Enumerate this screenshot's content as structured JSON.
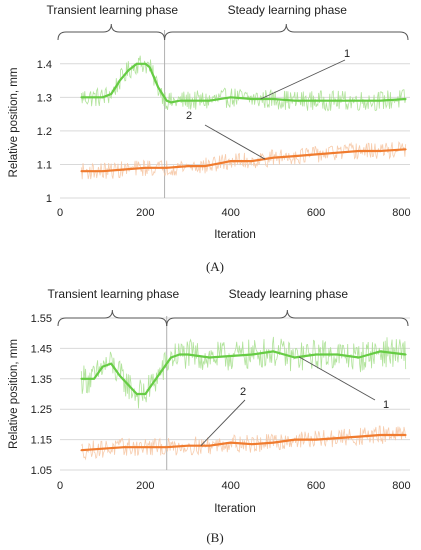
{
  "chart_data": [
    {
      "type": "line",
      "caption": "(A)",
      "phases": {
        "left": "Transient learning phase",
        "right": "Steady learning phase"
      },
      "phase_boundary_x": 245,
      "xlabel": "Iteration",
      "ylabel": "Relative position, mm",
      "xlim": [
        0,
        820
      ],
      "ylim": [
        1,
        1.45
      ],
      "xticks": [
        "0",
        "200",
        "400",
        "600",
        "800"
      ],
      "yticks": [
        "1",
        "1.1",
        "1.2",
        "1.3",
        "1.4"
      ],
      "grid": true,
      "series": [
        {
          "name": "1",
          "color": "#66cc44",
          "raw_color": "#a8e090",
          "raw_noise": 0.03,
          "x": [
            50,
            80,
            100,
            120,
            140,
            160,
            180,
            200,
            210,
            220,
            230,
            240,
            250,
            260,
            280,
            300,
            350,
            400,
            450,
            500,
            550,
            600,
            650,
            700,
            750,
            810
          ],
          "y": [
            1.3,
            1.3,
            1.3,
            1.31,
            1.35,
            1.38,
            1.4,
            1.4,
            1.39,
            1.36,
            1.33,
            1.31,
            1.29,
            1.285,
            1.29,
            1.29,
            1.29,
            1.3,
            1.295,
            1.295,
            1.29,
            1.29,
            1.29,
            1.29,
            1.29,
            1.295
          ]
        },
        {
          "name": "2",
          "color": "#f07b2e",
          "raw_color": "#f6c6a4",
          "raw_noise": 0.025,
          "x": [
            50,
            100,
            150,
            200,
            250,
            300,
            340,
            380,
            400,
            450,
            500,
            550,
            600,
            650,
            700,
            750,
            810
          ],
          "y": [
            1.08,
            1.08,
            1.085,
            1.09,
            1.09,
            1.095,
            1.095,
            1.105,
            1.11,
            1.11,
            1.12,
            1.125,
            1.13,
            1.135,
            1.14,
            1.14,
            1.145
          ]
        }
      ],
      "callouts": [
        {
          "text": "1",
          "series": 0,
          "point_x": 470
        },
        {
          "text": "2",
          "series": 1,
          "point_x": 480
        }
      ]
    },
    {
      "type": "line",
      "caption": "(B)",
      "phases": {
        "left": "Transient learning phase",
        "right": "Steady learning phase"
      },
      "phase_boundary_x": 250,
      "xlabel": "Iteration",
      "ylabel": "Relative position, mm",
      "xlim": [
        0,
        820
      ],
      "ylim": [
        1.05,
        1.55
      ],
      "xticks": [
        "0",
        "200",
        "400",
        "600",
        "800"
      ],
      "yticks": [
        "1.05",
        "1.15",
        "1.25",
        "1.35",
        "1.45",
        "1.55"
      ],
      "grid": true,
      "series": [
        {
          "name": "1",
          "color": "#66cc44",
          "raw_color": "#a8e090",
          "raw_noise": 0.05,
          "x": [
            50,
            80,
            100,
            120,
            140,
            160,
            180,
            200,
            220,
            240,
            260,
            280,
            300,
            350,
            400,
            450,
            500,
            550,
            600,
            650,
            700,
            750,
            810
          ],
          "y": [
            1.35,
            1.35,
            1.39,
            1.4,
            1.36,
            1.33,
            1.3,
            1.3,
            1.34,
            1.38,
            1.42,
            1.43,
            1.43,
            1.42,
            1.425,
            1.43,
            1.44,
            1.42,
            1.43,
            1.43,
            1.42,
            1.44,
            1.43
          ]
        },
        {
          "name": "2",
          "color": "#f07b2e",
          "raw_color": "#f6c6a4",
          "raw_noise": 0.03,
          "x": [
            50,
            100,
            150,
            200,
            250,
            300,
            350,
            400,
            450,
            500,
            550,
            600,
            650,
            700,
            750,
            810
          ],
          "y": [
            1.115,
            1.12,
            1.125,
            1.125,
            1.125,
            1.13,
            1.13,
            1.14,
            1.135,
            1.14,
            1.15,
            1.15,
            1.155,
            1.16,
            1.165,
            1.165
          ]
        }
      ],
      "callouts": [
        {
          "text": "1",
          "series": 0,
          "point_x": 560
        },
        {
          "text": "2",
          "series": 1,
          "point_x": 330
        }
      ]
    }
  ]
}
